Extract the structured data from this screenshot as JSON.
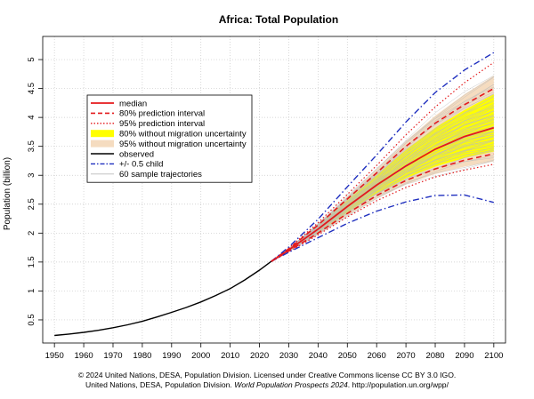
{
  "chart_data": {
    "type": "line",
    "title": "Africa: Total Population",
    "xlabel": "",
    "ylabel": "Population (billion)",
    "xlim": [
      1946,
      2104
    ],
    "ylim": [
      0.1,
      5.4
    ],
    "x_ticks": [
      1950,
      1960,
      1970,
      1980,
      1990,
      2000,
      2010,
      2020,
      2030,
      2040,
      2050,
      2060,
      2070,
      2080,
      2090,
      2100
    ],
    "y_ticks": [
      0.5,
      1,
      1.5,
      2,
      2.5,
      3,
      3.5,
      4,
      4.5,
      5
    ],
    "y_tick_labels": [
      "0.5",
      "1",
      "1.5",
      "2",
      "2.5",
      "3",
      "3.5",
      "4",
      "4.5",
      "5"
    ],
    "grid": true,
    "legend_position": "top-left",
    "legend": [
      {
        "label": "median",
        "style": "solid-red"
      },
      {
        "label": "80% prediction interval",
        "style": "dashed-red"
      },
      {
        "label": "95% prediction interval",
        "style": "dotted-red"
      },
      {
        "label": "80% without migration uncertainty",
        "style": "band-yellow"
      },
      {
        "label": "95% without migration uncertainty",
        "style": "band-tan"
      },
      {
        "label": "observed",
        "style": "solid-black"
      },
      {
        "label": "+/- 0.5 child",
        "style": "dashdot-blue"
      },
      {
        "label": "60 sample trajectories",
        "style": "thin-gray"
      }
    ],
    "colors": {
      "median": "#e41a1c",
      "observed": "#000000",
      "child": "#1f2fbf",
      "band80": "#ffff00",
      "band95": "#f5dcc0",
      "trajectory": "#bbbbbb",
      "grid": "#c8c8c8"
    },
    "proj_years": [
      2024,
      2030,
      2040,
      2050,
      2060,
      2070,
      2080,
      2090,
      2100
    ],
    "series": [
      {
        "name": "observed",
        "x": [
          1950,
          1955,
          1960,
          1965,
          1970,
          1975,
          1980,
          1985,
          1990,
          1995,
          2000,
          2005,
          2010,
          2015,
          2020,
          2024
        ],
        "values": [
          0.23,
          0.255,
          0.285,
          0.32,
          0.365,
          0.415,
          0.475,
          0.55,
          0.63,
          0.715,
          0.81,
          0.92,
          1.04,
          1.19,
          1.36,
          1.51
        ]
      },
      {
        "name": "median",
        "values": [
          1.51,
          1.71,
          2.07,
          2.46,
          2.83,
          3.16,
          3.45,
          3.67,
          3.82
        ]
      },
      {
        "name": "80% prediction interval upper",
        "values": [
          1.51,
          1.73,
          2.14,
          2.59,
          3.04,
          3.5,
          3.9,
          4.22,
          4.5
        ]
      },
      {
        "name": "80% prediction interval lower",
        "values": [
          1.51,
          1.69,
          2.0,
          2.34,
          2.65,
          2.91,
          3.11,
          3.26,
          3.37
        ]
      },
      {
        "name": "95% prediction interval upper",
        "values": [
          1.51,
          1.74,
          2.18,
          2.67,
          3.17,
          3.7,
          4.18,
          4.6,
          4.95
        ]
      },
      {
        "name": "95% prediction interval lower",
        "values": [
          1.51,
          1.68,
          1.97,
          2.28,
          2.56,
          2.79,
          2.97,
          3.09,
          3.19
        ]
      },
      {
        "name": "+/- 0.5 child upper",
        "values": [
          1.51,
          1.76,
          2.24,
          2.8,
          3.35,
          3.92,
          4.43,
          4.82,
          5.12
        ]
      },
      {
        "name": "+/- 0.5 child lower",
        "values": [
          1.51,
          1.67,
          1.92,
          2.17,
          2.38,
          2.54,
          2.65,
          2.66,
          2.53
        ]
      },
      {
        "name": "80% without migration uncertainty upper",
        "values": [
          1.51,
          1.725,
          2.13,
          2.57,
          3.0,
          3.44,
          3.82,
          4.13,
          4.4
        ]
      },
      {
        "name": "80% without migration uncertainty lower",
        "values": [
          1.51,
          1.695,
          2.01,
          2.36,
          2.68,
          2.95,
          3.15,
          3.3,
          3.41
        ]
      },
      {
        "name": "95% without migration uncertainty upper",
        "values": [
          1.51,
          1.735,
          2.16,
          2.63,
          3.1,
          3.59,
          4.03,
          4.4,
          4.72
        ]
      },
      {
        "name": "95% without migration uncertainty lower",
        "values": [
          1.51,
          1.685,
          1.98,
          2.3,
          2.6,
          2.84,
          3.02,
          3.15,
          3.24
        ]
      }
    ],
    "trajectory_quantiles": [
      -1.7,
      -1.45,
      -1.3,
      -1.15,
      -1.05,
      -0.95,
      -0.86,
      -0.78,
      -0.7,
      -0.62,
      -0.55,
      -0.48,
      -0.42,
      -0.36,
      -0.3,
      -0.24,
      -0.18,
      -0.12,
      -0.06,
      0.0,
      0.04,
      0.08,
      0.12,
      0.16,
      0.2,
      0.25,
      0.3,
      0.35,
      0.4,
      0.45,
      0.5,
      0.55,
      0.6,
      0.66,
      0.72,
      0.78,
      0.85,
      0.92,
      1.0,
      1.08,
      1.16,
      1.25,
      1.35,
      1.45,
      1.58,
      1.75,
      -1.58,
      -1.2,
      -0.9,
      -0.66,
      -0.33,
      -0.09,
      0.22,
      0.42,
      0.68,
      0.95,
      1.22,
      1.4,
      1.62,
      -0.5
    ]
  },
  "caption": {
    "line1": "© 2024 United Nations, DESA, Population Division. Licensed under Creative Commons license CC BY 3.0 IGO.",
    "line2_prefix": "United Nations, DESA, Population Division.",
    "line2_italic": "World Population Prospects 2024",
    "line2_suffix": ". http://population.un.org/wpp/"
  }
}
